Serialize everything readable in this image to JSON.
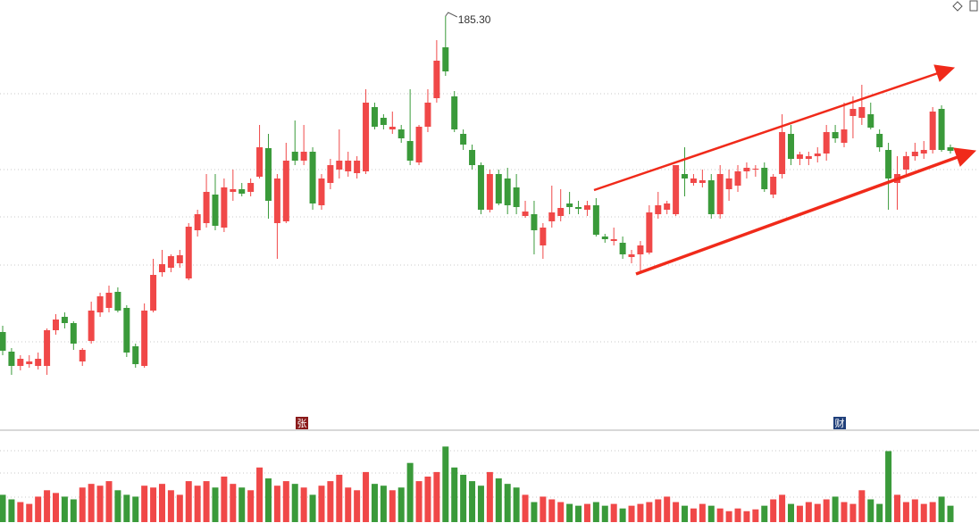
{
  "chart_data": {
    "type": "candlestick",
    "up_color": "#f04848",
    "down_color": "#3a9a3a",
    "ylim": [
      96.9,
      188.9
    ],
    "volume_ylim": [
      0,
      100
    ],
    "open": [
      114.5,
      110.1,
      106.9,
      107.3,
      106.9,
      106.9,
      114.9,
      117.9,
      116.5,
      107.9,
      112.5,
      118.9,
      119.9,
      123.5,
      119.9,
      111.3,
      106.9,
      119.3,
      127.9,
      128.9,
      129.9,
      126.5,
      137.3,
      138.9,
      145.3,
      137.9,
      145.9,
      146.5,
      145.9,
      149.3,
      155.7,
      138.9,
      139.3,
      154.9,
      152.9,
      154.9,
      142.9,
      147.9,
      150.9,
      150.5,
      150.1,
      150.5,
      164.9,
      162.5,
      159.9,
      159.9,
      157.3,
      152.5,
      160.5,
      166.9,
      178.3,
      167.3,
      158.9,
      155.3,
      151.9,
      141.9,
      149.9,
      148.9,
      146.9,
      140.5,
      140.9,
      133.9,
      139.3,
      140.5,
      143.3,
      142.5,
      141.9,
      142.9,
      135.9,
      134.9,
      134.5,
      131.3,
      131.9,
      132.3,
      140.9,
      141.9,
      140.9,
      149.9,
      147.9,
      147.9,
      148.5,
      140.9,
      146.5,
      147.3,
      150.5,
      150.9,
      151.3,
      145.3,
      149.9,
      158.9,
      153.3,
      153.3,
      153.9,
      154.5,
      159.3,
      156.9,
      162.9,
      162.5,
      163.3,
      158.9,
      155.3,
      147.9,
      150.9,
      153.9,
      154.5,
      155.3,
      164.5,
      155.9
    ],
    "high": [
      115.9,
      110.9,
      109.3,
      109.3,
      109.9,
      115.3,
      118.5,
      118.9,
      116.9,
      110.9,
      121.3,
      123.3,
      124.9,
      124.5,
      120.5,
      111.9,
      120.9,
      130.9,
      132.9,
      131.9,
      132.9,
      138.9,
      141.9,
      149.9,
      149.9,
      148.9,
      150.9,
      147.9,
      148.9,
      160.9,
      158.9,
      149.9,
      156.9,
      161.9,
      160.9,
      155.9,
      149.9,
      153.3,
      159.9,
      154.9,
      153.9,
      168.9,
      165.9,
      163.3,
      163.9,
      160.9,
      168.9,
      160.9,
      168.9,
      179.9,
      185.3,
      168.5,
      159.9,
      156.5,
      152.5,
      150.9,
      150.9,
      151.3,
      149.9,
      143.9,
      143.9,
      138.9,
      147.3,
      146.5,
      145.9,
      143.9,
      143.9,
      144.5,
      136.5,
      137.9,
      135.9,
      132.9,
      134.9,
      142.9,
      145.9,
      143.9,
      151.9,
      155.9,
      149.9,
      150.9,
      149.9,
      151.9,
      150.9,
      151.9,
      152.5,
      151.9,
      152.5,
      149.9,
      163.3,
      160.9,
      154.9,
      154.9,
      155.9,
      160.9,
      160.9,
      165.9,
      167.3,
      169.9,
      165.9,
      159.9,
      156.9,
      153.9,
      154.9,
      156.9,
      157.3,
      164.9,
      165.3,
      156.5
    ],
    "low": [
      109.3,
      104.9,
      105.9,
      106.5,
      106.1,
      104.9,
      113.9,
      115.3,
      110.5,
      106.9,
      111.9,
      117.9,
      118.9,
      118.9,
      108.9,
      106.5,
      106.5,
      118.9,
      126.9,
      127.9,
      128.9,
      126.1,
      135.9,
      137.9,
      137.3,
      136.9,
      143.9,
      144.9,
      144.9,
      148.9,
      139.9,
      130.9,
      138.9,
      151.9,
      151.9,
      141.9,
      141.9,
      146.5,
      148.9,
      149.3,
      148.9,
      149.9,
      159.9,
      159.9,
      158.9,
      156.9,
      151.9,
      151.9,
      159.3,
      165.9,
      171.9,
      159.3,
      155.3,
      150.9,
      140.9,
      141.3,
      142.9,
      140.9,
      140.9,
      140.1,
      131.9,
      130.9,
      137.9,
      139.3,
      140.9,
      140.9,
      140.5,
      135.9,
      134.5,
      133.9,
      130.9,
      129.9,
      127.9,
      131.9,
      139.9,
      140.9,
      140.5,
      144.9,
      147.3,
      146.9,
      139.9,
      139.9,
      143.9,
      145.9,
      148.9,
      149.3,
      145.9,
      144.5,
      148.9,
      151.9,
      151.9,
      151.9,
      152.5,
      152.9,
      156.9,
      155.9,
      157.9,
      160.9,
      159.9,
      154.9,
      141.9,
      141.9,
      149.9,
      152.9,
      153.3,
      154.5,
      154.9,
      154.5
    ],
    "close": [
      110.3,
      106.9,
      108.5,
      107.9,
      108.5,
      114.9,
      117.3,
      116.5,
      111.9,
      110.5,
      119.3,
      122.5,
      123.3,
      119.3,
      109.9,
      107.3,
      119.3,
      127.3,
      129.7,
      131.5,
      131.7,
      138.1,
      140.9,
      145.9,
      138.3,
      146.9,
      146.5,
      145.5,
      147.9,
      155.9,
      143.9,
      148.9,
      152.9,
      152.9,
      154.9,
      143.3,
      148.9,
      151.9,
      152.9,
      152.9,
      152.9,
      165.9,
      160.5,
      160.9,
      160.5,
      157.9,
      152.9,
      160.5,
      165.9,
      175.3,
      172.9,
      159.9,
      156.5,
      151.9,
      141.9,
      149.9,
      143.3,
      142.9,
      142.5,
      141.5,
      137.3,
      137.9,
      141.3,
      142.3,
      142.5,
      142.1,
      142.9,
      136.3,
      135.3,
      135.3,
      131.9,
      131.9,
      133.9,
      141.3,
      142.9,
      143.3,
      151.9,
      148.9,
      148.9,
      148.5,
      140.9,
      149.9,
      148.9,
      150.5,
      151.3,
      151.1,
      146.5,
      149.3,
      159.3,
      153.3,
      154.3,
      153.9,
      154.5,
      159.3,
      157.9,
      159.9,
      164.5,
      164.9,
      160.3,
      155.9,
      148.9,
      149.9,
      153.9,
      154.9,
      155.3,
      163.9,
      155.3,
      155.1
    ],
    "volume": [
      30,
      25,
      22,
      20,
      28,
      35,
      32,
      28,
      25,
      38,
      42,
      40,
      45,
      35,
      30,
      28,
      40,
      38,
      42,
      35,
      30,
      45,
      40,
      45,
      38,
      50,
      42,
      38,
      35,
      60,
      48,
      40,
      45,
      42,
      38,
      30,
      40,
      45,
      52,
      38,
      35,
      55,
      42,
      40,
      35,
      38,
      65,
      45,
      50,
      55,
      83,
      60,
      52,
      45,
      40,
      55,
      48,
      42,
      38,
      30,
      22,
      28,
      25,
      22,
      20,
      18,
      20,
      22,
      18,
      20,
      15,
      18,
      20,
      22,
      25,
      28,
      22,
      18,
      15,
      20,
      18,
      15,
      12,
      15,
      12,
      14,
      18,
      25,
      30,
      20,
      18,
      22,
      20,
      25,
      28,
      22,
      20,
      35,
      25,
      20,
      78,
      30,
      22,
      25,
      20,
      22,
      28,
      18
    ],
    "annotations": [
      "185.30"
    ],
    "markers": [
      "张",
      "财"
    ]
  }
}
